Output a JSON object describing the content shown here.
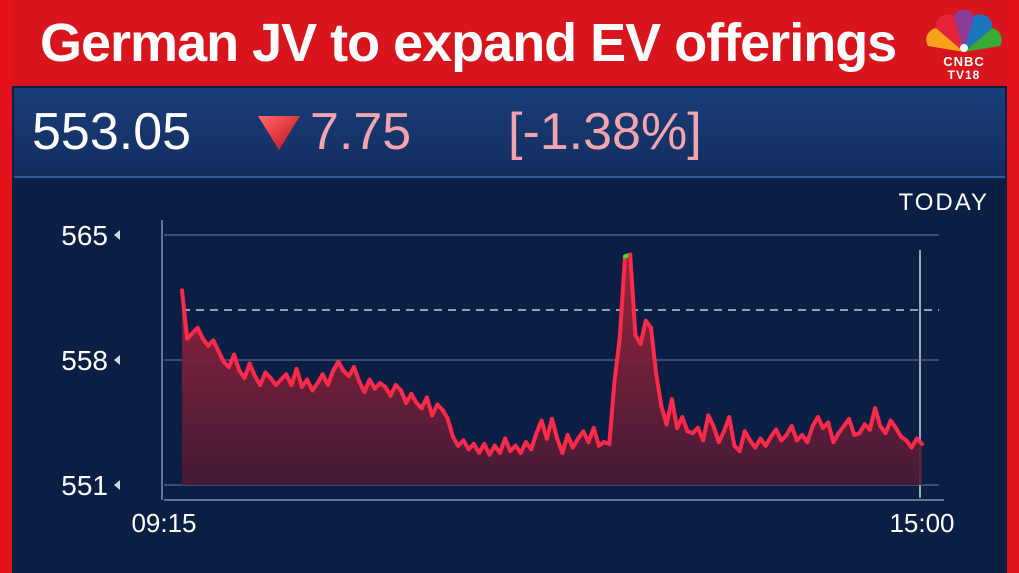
{
  "headline": "German JV to expand EV offerings",
  "logo": {
    "line1": "CNBC",
    "line2": "TV18"
  },
  "quote": {
    "price": "553.05",
    "change": "7.75",
    "change_pct": "[-1.38%]",
    "direction": "down"
  },
  "colors": {
    "frame": "#e3121b",
    "background": "#0b1f45",
    "line_down": "#ff2a4a",
    "line_up": "#22ee22",
    "change_text": "#f3a5ad"
  },
  "chart_data": {
    "type": "line",
    "period_label": "TODAY",
    "y_ticks": [
      "565",
      "558",
      "551"
    ],
    "x_ticks": [
      "09:15",
      "15:00"
    ],
    "ylim": [
      551,
      565
    ],
    "previous_close": 560.8,
    "x_start": "09:15",
    "x_end": "15:00",
    "series": [
      {
        "values": [
          561.9,
          559.2,
          559.5,
          559.8,
          559.2,
          558.8,
          559.1,
          558.5,
          557.9,
          557.6,
          558.3,
          557.4,
          557.0,
          557.8,
          557.1,
          556.6,
          557.3,
          557.0,
          556.6,
          556.9,
          557.2,
          556.6,
          557.5,
          556.5,
          556.9,
          556.3,
          556.7,
          557.2,
          556.6,
          557.4,
          557.9,
          557.4,
          557.1,
          557.6,
          556.8,
          556.2,
          556.9,
          556.4,
          556.7,
          556.5,
          556.0,
          556.6,
          556.3,
          555.6,
          556.1,
          555.6,
          555.3,
          555.9,
          554.9,
          555.5,
          555.2,
          554.7,
          553.7,
          553.2,
          553.5,
          553.0,
          553.3,
          552.8,
          553.3,
          552.7,
          553.2,
          552.8,
          553.6,
          552.9,
          553.2,
          552.8,
          553.4,
          553.0,
          553.9,
          554.6,
          553.6,
          554.7,
          553.6,
          552.8,
          553.8,
          553.1,
          553.6,
          554.0,
          553.4,
          554.2,
          553.2,
          553.4,
          553.3,
          556.8,
          559.2,
          563.8,
          563.9,
          559.4,
          558.9,
          560.2,
          559.8,
          557.2,
          555.4,
          554.4,
          555.8,
          554.2,
          554.8,
          554.0,
          553.9,
          554.2,
          553.5,
          554.9,
          554.3,
          553.4,
          554.0,
          554.8,
          553.2,
          552.9,
          554.0,
          553.5,
          553.1,
          553.6,
          553.2,
          553.7,
          554.1,
          553.5,
          553.8,
          554.3,
          553.5,
          553.8,
          553.4,
          554.3,
          554.8,
          554.2,
          554.5,
          553.4,
          553.9,
          554.3,
          554.7,
          553.8,
          553.9,
          554.4,
          554.1,
          555.3,
          554.3,
          553.9,
          554.6,
          554.2,
          553.7,
          553.5,
          553.1,
          553.6,
          553.3
        ]
      }
    ]
  }
}
